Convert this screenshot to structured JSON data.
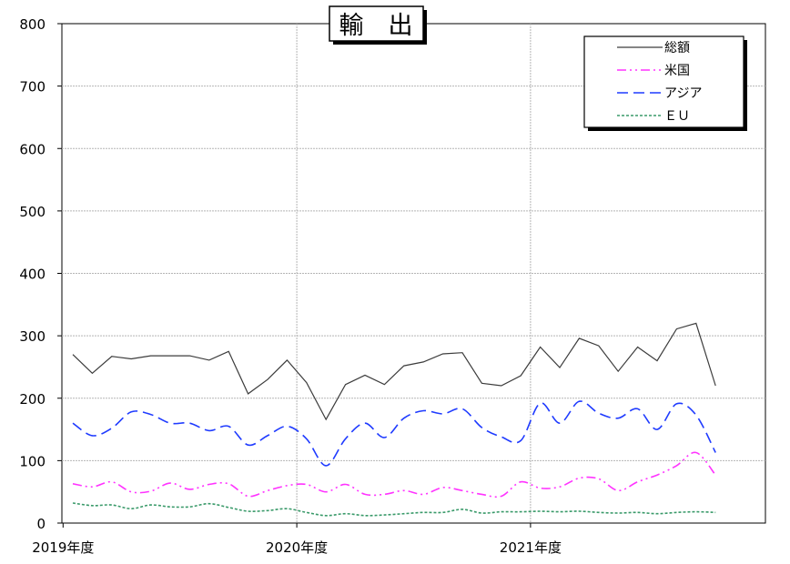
{
  "chart_data": {
    "type": "line",
    "title": "輸　出",
    "ylim": [
      0,
      800
    ],
    "yticks": [
      "0",
      "100",
      "200",
      "300",
      "400",
      "500",
      "600",
      "700",
      "800"
    ],
    "xtick_labels": [
      "2019年度",
      "2020年度",
      "2021年度"
    ],
    "months": 34,
    "grid": true,
    "legend_position": "top-right",
    "series": [
      {
        "name": "総額",
        "color": "#3c3c3c",
        "dash": "solid",
        "values": [
          270,
          240,
          267,
          263,
          268,
          268,
          268,
          261,
          275,
          207,
          230,
          261,
          225,
          166,
          222,
          237,
          222,
          252,
          258,
          271,
          273,
          224,
          220,
          236,
          282,
          249,
          296,
          284,
          243,
          282,
          260,
          311,
          320,
          220
        ]
      },
      {
        "name": "米国",
        "color": "#ff33ff",
        "dash": "dashdotdot",
        "values": [
          63,
          58,
          66,
          50,
          51,
          64,
          54,
          62,
          63,
          43,
          52,
          60,
          62,
          50,
          62,
          46,
          46,
          52,
          46,
          57,
          52,
          46,
          43,
          66,
          56,
          58,
          72,
          71,
          52,
          66,
          77,
          92,
          113,
          77
        ]
      },
      {
        "name": "アジア",
        "color": "#1f3bff",
        "dash": "dashed",
        "values": [
          160,
          140,
          152,
          178,
          174,
          160,
          160,
          148,
          155,
          125,
          140,
          155,
          135,
          92,
          135,
          160,
          137,
          168,
          180,
          175,
          183,
          153,
          138,
          132,
          192,
          160,
          195,
          176,
          168,
          183,
          150,
          191,
          173,
          113
        ]
      },
      {
        "name": "ＥＵ",
        "color": "#3a9a6a",
        "dash": "dotted",
        "values": [
          32,
          28,
          29,
          23,
          29,
          26,
          26,
          31,
          25,
          19,
          20,
          23,
          17,
          12,
          15,
          12,
          13,
          15,
          17,
          17,
          22,
          16,
          18,
          18,
          19,
          18,
          19,
          17,
          16,
          17,
          15,
          17,
          18,
          17
        ]
      }
    ]
  }
}
